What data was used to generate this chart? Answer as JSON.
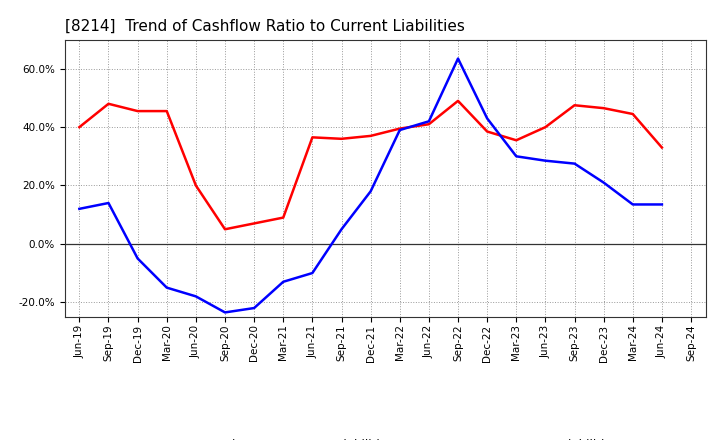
{
  "title": "[8214]  Trend of Cashflow Ratio to Current Liabilities",
  "x_labels": [
    "Jun-19",
    "Sep-19",
    "Dec-19",
    "Mar-20",
    "Jun-20",
    "Sep-20",
    "Dec-20",
    "Mar-21",
    "Jun-21",
    "Sep-21",
    "Dec-21",
    "Mar-22",
    "Jun-22",
    "Sep-22",
    "Dec-22",
    "Mar-23",
    "Jun-23",
    "Sep-23",
    "Dec-23",
    "Mar-24",
    "Jun-24",
    "Sep-24"
  ],
  "operating_cf": [
    40.0,
    48.0,
    45.5,
    45.5,
    20.0,
    5.0,
    7.0,
    9.0,
    36.5,
    36.0,
    37.0,
    39.5,
    41.0,
    49.0,
    38.5,
    35.5,
    40.0,
    47.5,
    46.5,
    44.5,
    33.0,
    null
  ],
  "free_cf": [
    12.0,
    14.0,
    -5.0,
    -15.0,
    -18.0,
    -23.5,
    -22.0,
    -13.0,
    -10.0,
    5.0,
    18.0,
    39.0,
    42.0,
    63.5,
    43.0,
    30.0,
    28.5,
    27.5,
    21.0,
    13.5,
    13.5,
    null
  ],
  "ylim": [
    -25.0,
    70.0
  ],
  "yticks": [
    -20.0,
    0.0,
    20.0,
    40.0,
    60.0
  ],
  "operating_color": "#ff0000",
  "free_color": "#0000ff",
  "background_color": "#ffffff",
  "plot_bg_color": "#ffffff",
  "grid_color": "#aaaaaa",
  "legend_operating": "Operating CF to Current Liabilities",
  "legend_free": "Free CF to Current Liabilities",
  "title_fontsize": 11,
  "tick_fontsize": 7.5,
  "legend_fontsize": 8.5,
  "linewidth": 1.8
}
